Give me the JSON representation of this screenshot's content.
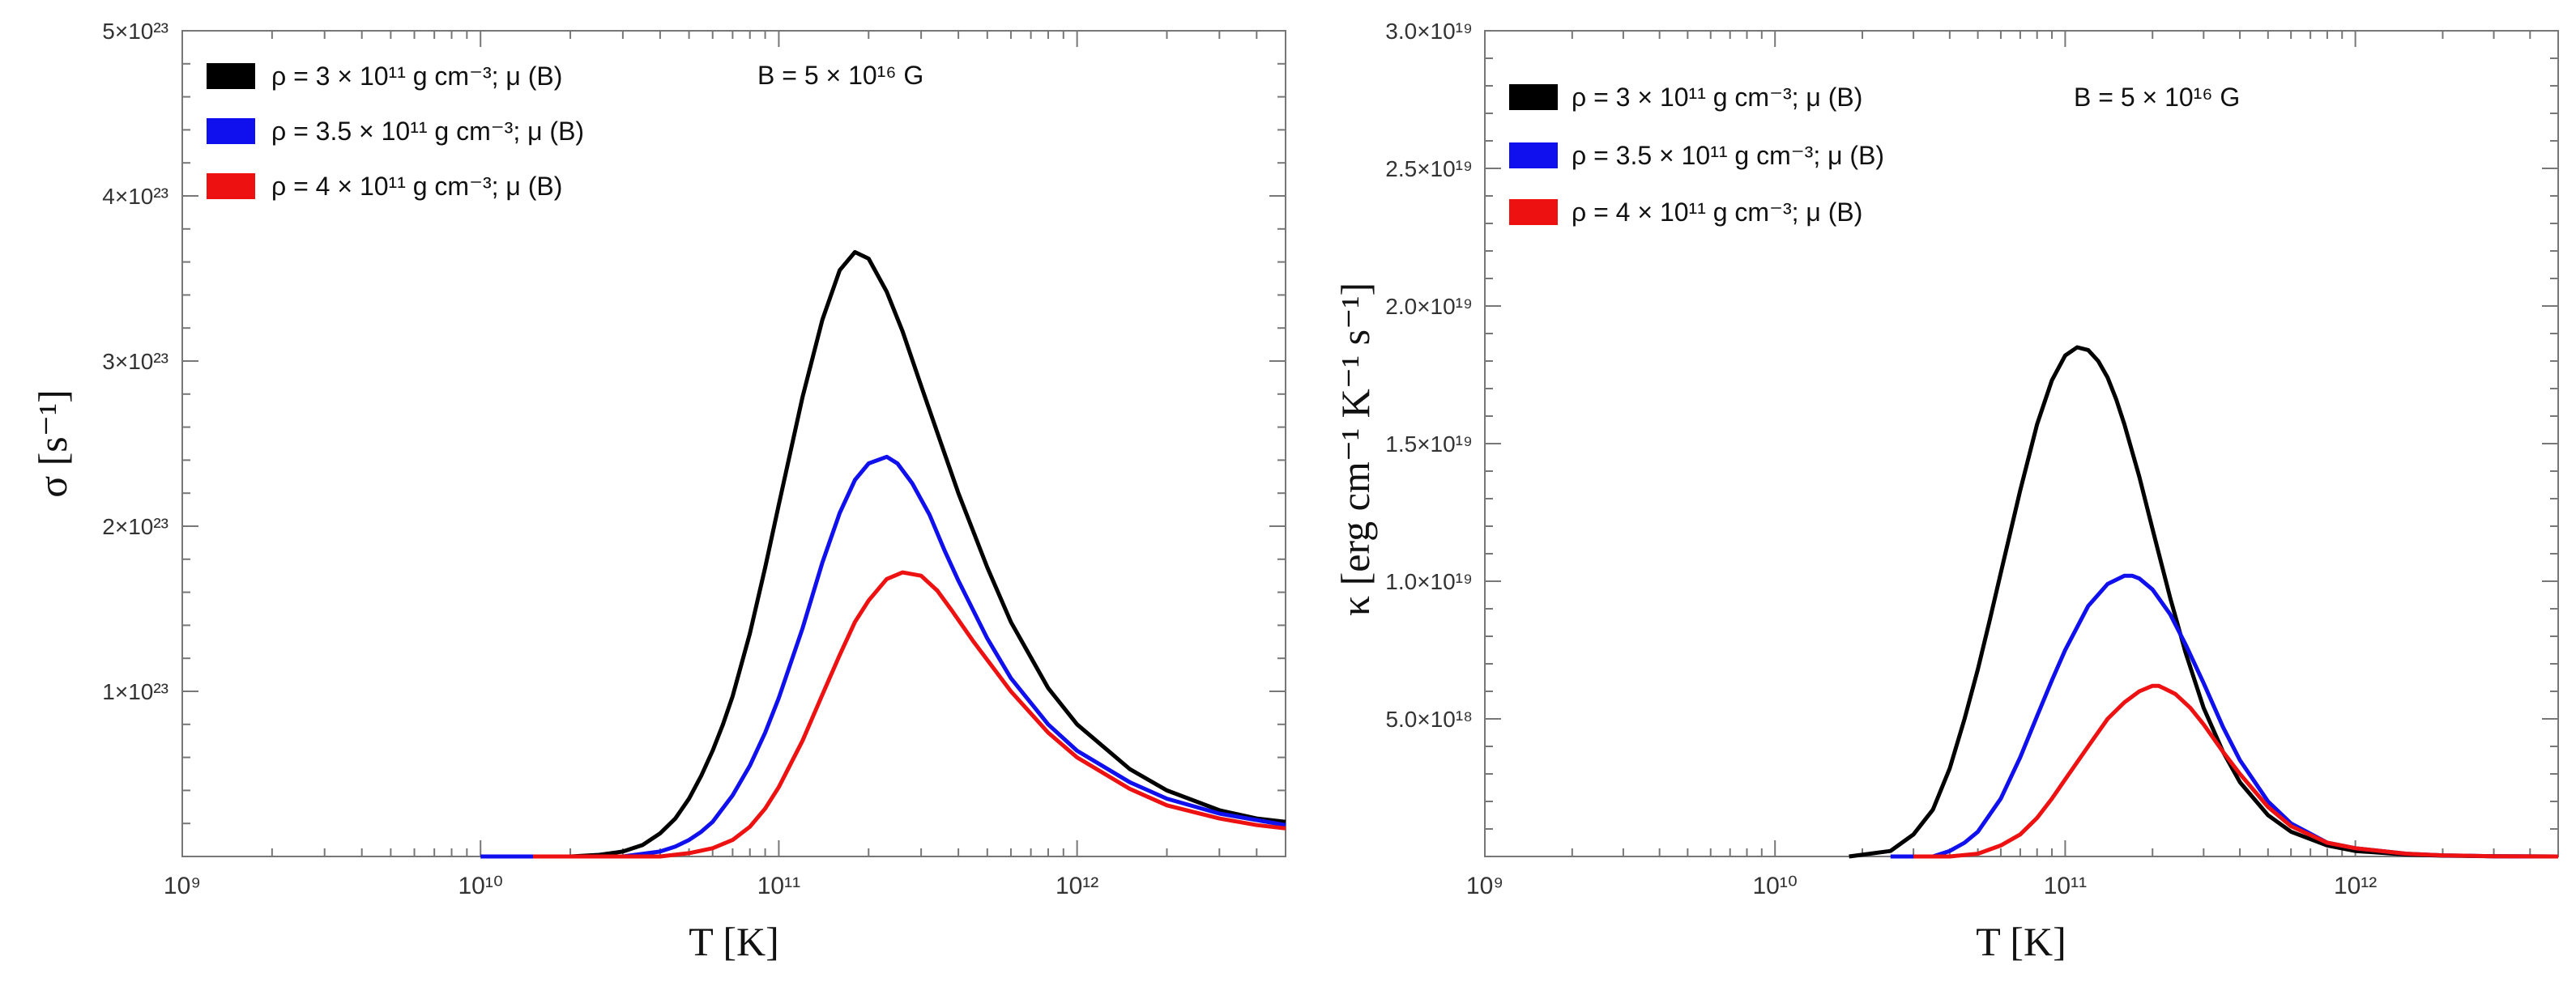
{
  "chart_data": [
    {
      "type": "line",
      "xscale": "log",
      "xlim": [
        1000000000.0,
        5000000000000.0
      ],
      "ylim": [
        0,
        5e+23
      ],
      "xlabel": "T [K]",
      "ylabel": "σ [s⁻¹]",
      "annotation": "B = 5 × 10¹⁶ G",
      "xticks": [
        {
          "value": 1000000000.0,
          "label": "10⁹"
        },
        {
          "value": 10000000000.0,
          "label": "10¹⁰"
        },
        {
          "value": 100000000000.0,
          "label": "10¹¹"
        },
        {
          "value": 1000000000000.0,
          "label": "10¹²"
        }
      ],
      "yticks": [
        {
          "value": 1e+23,
          "label": "1×10²³"
        },
        {
          "value": 2e+23,
          "label": "2×10²³"
        },
        {
          "value": 3e+23,
          "label": "3×10²³"
        },
        {
          "value": 4e+23,
          "label": "4×10²³"
        },
        {
          "value": 5e+23,
          "label": "5×10²³"
        }
      ],
      "series": [
        {
          "name": "ρ = 3 × 10¹¹ g cm⁻³; μ (B)",
          "color": "#000000",
          "x": [
            20000000000.0,
            25000000000.0,
            30000000000.0,
            35000000000.0,
            40000000000.0,
            45000000000.0,
            50000000000.0,
            55000000000.0,
            60000000000.0,
            65000000000.0,
            70000000000.0,
            80000000000.0,
            90000000000.0,
            100000000000.0,
            120000000000.0,
            140000000000.0,
            160000000000.0,
            180000000000.0,
            200000000000.0,
            230000000000.0,
            260000000000.0,
            300000000000.0,
            350000000000.0,
            400000000000.0,
            500000000000.0,
            600000000000.0,
            800000000000.0,
            1000000000000.0,
            1500000000000.0,
            2000000000000.0,
            3000000000000.0,
            4000000000000.0,
            5000000000000.0
          ],
          "values": [
            0,
            1e+21,
            3e+21,
            7e+21,
            1.4e+22,
            2.3e+22,
            3.5e+22,
            4.9e+22,
            6.4e+22,
            8e+22,
            9.7e+22,
            1.35e+23,
            1.75e+23,
            2.13e+23,
            2.78e+23,
            3.25e+23,
            3.55e+23,
            3.66e+23,
            3.62e+23,
            3.42e+23,
            3.18e+23,
            2.85e+23,
            2.5e+23,
            2.2e+23,
            1.75e+23,
            1.42e+23,
            1.02e+23,
            8e+22,
            5.3e+22,
            4e+22,
            2.8e+22,
            2.3e+22,
            2.1e+22
          ]
        },
        {
          "name": "ρ = 3.5 × 10¹¹ g cm⁻³; μ (B)",
          "color": "#1010ee",
          "x": [
            10000000000.0,
            20000000000.0,
            30000000000.0,
            40000000000.0,
            45000000000.0,
            50000000000.0,
            55000000000.0,
            60000000000.0,
            70000000000.0,
            80000000000.0,
            90000000000.0,
            100000000000.0,
            120000000000.0,
            140000000000.0,
            160000000000.0,
            180000000000.0,
            200000000000.0,
            230000000000.0,
            250000000000.0,
            280000000000.0,
            320000000000.0,
            360000000000.0,
            400000000000.0,
            500000000000.0,
            600000000000.0,
            800000000000.0,
            1000000000000.0,
            1500000000000.0,
            2000000000000.0,
            3000000000000.0,
            4000000000000.0,
            5000000000000.0
          ],
          "values": [
            0,
            0,
            0,
            3e+21,
            6e+21,
            1e+22,
            1.5e+22,
            2.1e+22,
            3.7e+22,
            5.5e+22,
            7.5e+22,
            9.6e+22,
            1.38e+23,
            1.78e+23,
            2.08e+23,
            2.28e+23,
            2.38e+23,
            2.42e+23,
            2.38e+23,
            2.26e+23,
            2.07e+23,
            1.85e+23,
            1.67e+23,
            1.32e+23,
            1.08e+23,
            8e+22,
            6.4e+22,
            4.5e+22,
            3.5e+22,
            2.6e+22,
            2.2e+22,
            1.9e+22
          ]
        },
        {
          "name": "ρ = 4 × 10¹¹ g cm⁻³; μ (B)",
          "color": "#ee1111",
          "x": [
            15000000000.0,
            20000000000.0,
            30000000000.0,
            40000000000.0,
            50000000000.0,
            60000000000.0,
            70000000000.0,
            80000000000.0,
            90000000000.0,
            100000000000.0,
            120000000000.0,
            140000000000.0,
            160000000000.0,
            180000000000.0,
            200000000000.0,
            230000000000.0,
            260000000000.0,
            300000000000.0,
            340000000000.0,
            380000000000.0,
            450000000000.0,
            500000000000.0,
            600000000000.0,
            800000000000.0,
            1000000000000.0,
            1500000000000.0,
            2000000000000.0,
            3000000000000.0,
            4000000000000.0,
            5000000000000.0
          ],
          "values": [
            0,
            0,
            0,
            0,
            2e+21,
            5e+21,
            1e+22,
            1.8e+22,
            2.9e+22,
            4.2e+22,
            7e+22,
            9.8e+22,
            1.22e+23,
            1.42e+23,
            1.55e+23,
            1.68e+23,
            1.72e+23,
            1.7e+23,
            1.61e+23,
            1.49e+23,
            1.3e+23,
            1.19e+23,
            1e+23,
            7.5e+22,
            6e+22,
            4.1e+22,
            3.1e+22,
            2.3e+22,
            1.9e+22,
            1.7e+22
          ]
        }
      ]
    },
    {
      "type": "line",
      "xscale": "log",
      "xlim": [
        1000000000.0,
        5000000000000.0
      ],
      "ylim": [
        0,
        3e+19
      ],
      "xlabel": "T [K]",
      "ylabel": "κ [erg cm⁻¹ K⁻¹ s⁻¹]",
      "annotation": "B = 5 × 10¹⁶ G",
      "xticks": [
        {
          "value": 1000000000.0,
          "label": "10⁹"
        },
        {
          "value": 10000000000.0,
          "label": "10¹⁰"
        },
        {
          "value": 100000000000.0,
          "label": "10¹¹"
        },
        {
          "value": 1000000000000.0,
          "label": "10¹²"
        }
      ],
      "yticks": [
        {
          "value": 5e+18,
          "label": "5.0×10¹⁸"
        },
        {
          "value": 1e+19,
          "label": "1.0×10¹⁹"
        },
        {
          "value": 1.5e+19,
          "label": "1.5×10¹⁹"
        },
        {
          "value": 2e+19,
          "label": "2.0×10¹⁹"
        },
        {
          "value": 2.5e+19,
          "label": "2.5×10¹⁹"
        },
        {
          "value": 3e+19,
          "label": "3.0×10¹⁹"
        }
      ],
      "series": [
        {
          "name": "ρ = 3 × 10¹¹ g cm⁻³; μ (B)",
          "color": "#000000",
          "x": [
            18000000000.0,
            25000000000.0,
            30000000000.0,
            35000000000.0,
            40000000000.0,
            45000000000.0,
            50000000000.0,
            55000000000.0,
            60000000000.0,
            70000000000.0,
            80000000000.0,
            90000000000.0,
            100000000000.0,
            110000000000.0,
            120000000000.0,
            130000000000.0,
            140000000000.0,
            150000000000.0,
            160000000000.0,
            180000000000.0,
            200000000000.0,
            230000000000.0,
            260000000000.0,
            300000000000.0,
            350000000000.0,
            400000000000.0,
            500000000000.0,
            600000000000.0,
            800000000000.0,
            1000000000000.0,
            1500000000000.0,
            2000000000000.0,
            3000000000000.0,
            5000000000000.0
          ],
          "values": [
            0,
            2e+17,
            8e+17,
            1.7e+18,
            3.2e+18,
            5e+18,
            6.8e+18,
            8.6e+18,
            1.03e+19,
            1.33e+19,
            1.57e+19,
            1.73e+19,
            1.82e+19,
            1.85e+19,
            1.84e+19,
            1.8e+19,
            1.74e+19,
            1.66e+19,
            1.57e+19,
            1.38e+19,
            1.19e+19,
            9.4e+18,
            7.4e+18,
            5.4e+18,
            3.8e+18,
            2.7e+18,
            1.5e+18,
            9e+17,
            4e+17,
            2e+17,
            7e+16,
            3e+16,
            1e+16,
            0
          ]
        },
        {
          "name": "ρ = 3.5 × 10¹¹ g cm⁻³; μ (B)",
          "color": "#1010ee",
          "x": [
            25000000000.0,
            35000000000.0,
            40000000000.0,
            45000000000.0,
            50000000000.0,
            60000000000.0,
            70000000000.0,
            80000000000.0,
            90000000000.0,
            100000000000.0,
            120000000000.0,
            140000000000.0,
            160000000000.0,
            170000000000.0,
            180000000000.0,
            200000000000.0,
            230000000000.0,
            260000000000.0,
            300000000000.0,
            350000000000.0,
            400000000000.0,
            500000000000.0,
            600000000000.0,
            800000000000.0,
            1000000000000.0,
            1500000000000.0,
            2000000000000.0,
            3000000000000.0,
            5000000000000.0
          ],
          "values": [
            0,
            0,
            2e+17,
            5e+17,
            9e+17,
            2.1e+18,
            3.6e+18,
            5.1e+18,
            6.4e+18,
            7.5e+18,
            9.1e+18,
            9.9e+18,
            1.02e+19,
            1.02e+19,
            1.01e+19,
            9.7e+18,
            8.8e+18,
            7.7e+18,
            6.3e+18,
            4.7e+18,
            3.5e+18,
            2e+18,
            1.2e+18,
            5e+17,
            3e+17,
            1e+17,
            4e+16,
            1e+16,
            0
          ]
        },
        {
          "name": "ρ = 4 × 10¹¹ g cm⁻³; μ (B)",
          "color": "#ee1111",
          "x": [
            30000000000.0,
            40000000000.0,
            50000000000.0,
            60000000000.0,
            70000000000.0,
            80000000000.0,
            90000000000.0,
            100000000000.0,
            120000000000.0,
            140000000000.0,
            160000000000.0,
            180000000000.0,
            200000000000.0,
            210000000000.0,
            220000000000.0,
            240000000000.0,
            270000000000.0,
            300000000000.0,
            350000000000.0,
            400000000000.0,
            500000000000.0,
            600000000000.0,
            800000000000.0,
            1000000000000.0,
            1500000000000.0,
            2000000000000.0,
            3000000000000.0,
            5000000000000.0
          ],
          "values": [
            0,
            0,
            1e+17,
            4e+17,
            8e+17,
            1.4e+18,
            2.1e+18,
            2.8e+18,
            4e+18,
            5e+18,
            5.6e+18,
            6e+18,
            6.2e+18,
            6.2e+18,
            6.1e+18,
            5.9e+18,
            5.4e+18,
            4.8e+18,
            3.8e+18,
            3e+18,
            1.8e+18,
            1.1e+18,
            5e+17,
            3e+17,
            1e+17,
            4e+16,
            1e+16,
            0
          ]
        }
      ]
    }
  ]
}
